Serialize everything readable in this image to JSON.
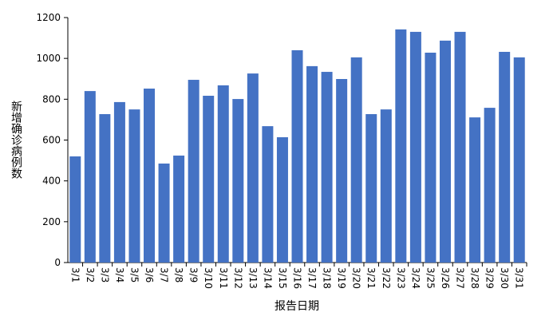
{
  "chart_data": {
    "type": "bar",
    "y_label": "新增确诊病例数",
    "x_label": "报告日期",
    "categories": [
      "3/1",
      "3/2",
      "3/3",
      "3/4",
      "3/5",
      "3/6",
      "3/7",
      "3/8",
      "3/9",
      "3/10",
      "3/11",
      "3/12",
      "3/13",
      "3/14",
      "3/15",
      "3/16",
      "3/17",
      "3/18",
      "3/19",
      "3/20",
      "3/21",
      "3/22",
      "3/23",
      "3/24",
      "3/25",
      "3/26",
      "3/27",
      "3/28",
      "3/29",
      "3/30",
      "3/31"
    ],
    "values": [
      520,
      840,
      727,
      786,
      750,
      852,
      485,
      524,
      895,
      817,
      868,
      801,
      926,
      668,
      614,
      1040,
      962,
      934,
      899,
      1005,
      727,
      750,
      1142,
      1130,
      1028,
      1087,
      1130,
      711,
      758,
      1032,
      1005
    ],
    "color": "#4472c4",
    "ylim": [
      0,
      1200
    ],
    "yticks": [
      0,
      200,
      400,
      600,
      800,
      1000,
      1200
    ],
    "grid": false
  }
}
